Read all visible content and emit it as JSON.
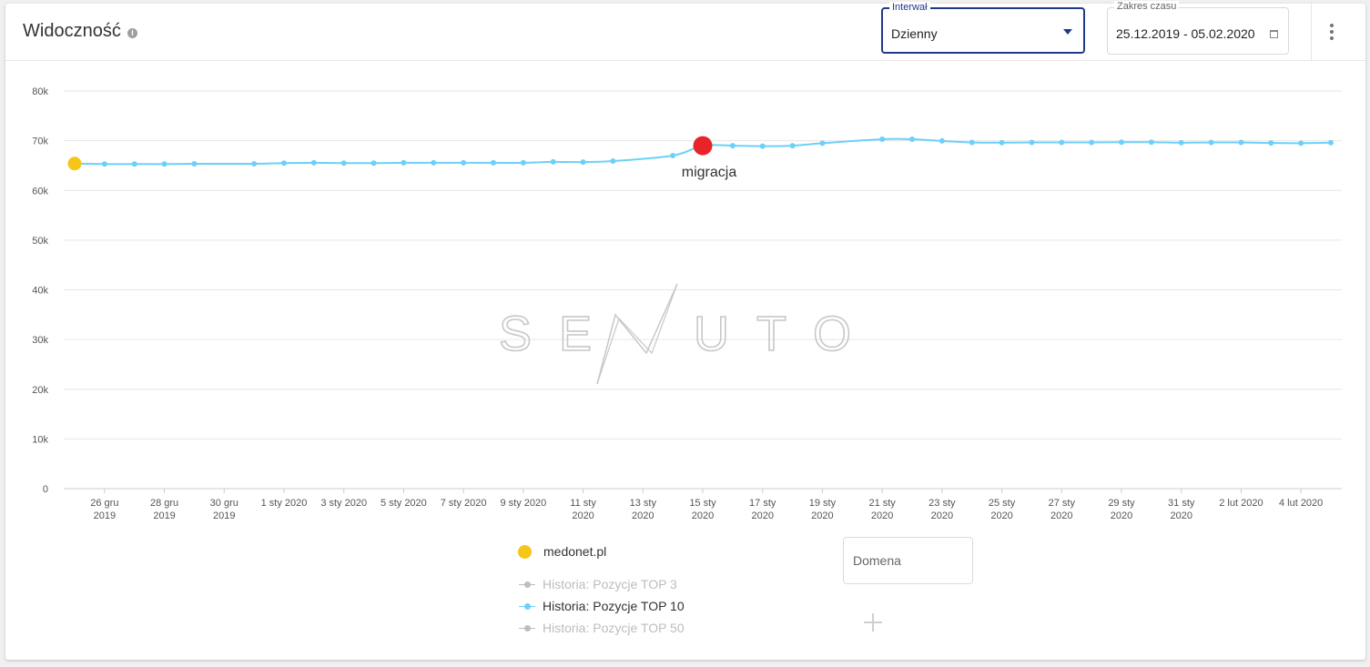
{
  "header": {
    "title": "Widoczność",
    "info_icon": "info-icon",
    "interval": {
      "label": "Interwał",
      "value": "Dzienny"
    },
    "date_range": {
      "label": "Zakres czasu",
      "value": "25.12.2019 - 05.02.2020"
    },
    "menu_icon": "more-vert-icon"
  },
  "legend": {
    "domain": "medonet.pl",
    "domain_color": "#f5c518",
    "series": [
      {
        "label": "Historia: Pozycje TOP 3",
        "active": false,
        "color": "#bdbdbd"
      },
      {
        "label": "Historia: Pozycje TOP 10",
        "active": true,
        "color": "#6dd0f7"
      },
      {
        "label": "Historia: Pozycje TOP 50",
        "active": false,
        "color": "#bdbdbd"
      }
    ],
    "domain_input_placeholder": "Domena",
    "add_icon": "plus-icon"
  },
  "chart_data": {
    "type": "line",
    "x": [
      "2019-12-25",
      "2019-12-26",
      "2019-12-27",
      "2019-12-28",
      "2019-12-29",
      "2019-12-31",
      "2020-01-01",
      "2020-01-02",
      "2020-01-03",
      "2020-01-04",
      "2020-01-05",
      "2020-01-06",
      "2020-01-07",
      "2020-01-08",
      "2020-01-09",
      "2020-01-10",
      "2020-01-11",
      "2020-01-12",
      "2020-01-14",
      "2020-01-15",
      "2020-01-16",
      "2020-01-17",
      "2020-01-18",
      "2020-01-19",
      "2020-01-21",
      "2020-01-22",
      "2020-01-23",
      "2020-01-24",
      "2020-01-25",
      "2020-01-26",
      "2020-01-27",
      "2020-01-28",
      "2020-01-29",
      "2020-01-30",
      "2020-01-31",
      "2020-02-01",
      "2020-02-02",
      "2020-02-03",
      "2020-02-04",
      "2020-02-05"
    ],
    "series": [
      {
        "name": "Historia: Pozycje TOP 10",
        "color": "#6dd0f7",
        "values": [
          65400,
          65300,
          65300,
          65300,
          65350,
          65350,
          65500,
          65550,
          65500,
          65500,
          65550,
          65550,
          65550,
          65550,
          65550,
          65750,
          65700,
          65900,
          67000,
          69000,
          69000,
          68900,
          69000,
          69500,
          70300,
          70300,
          69950,
          69650,
          69600,
          69650,
          69650,
          69650,
          69700,
          69700,
          69600,
          69650,
          69650,
          69550,
          69500,
          69600
        ]
      }
    ],
    "annotations": [
      {
        "x": "2019-12-25",
        "y": 65400,
        "color": "#f5c518"
      },
      {
        "x": "2020-01-15",
        "y": 69000,
        "color": "#e8242a",
        "label": "migracja"
      }
    ],
    "x_ticks": [
      {
        "x": "2019-12-26",
        "line1": "26 gru",
        "line2": "2019"
      },
      {
        "x": "2019-12-28",
        "line1": "28 gru",
        "line2": "2019"
      },
      {
        "x": "2019-12-30",
        "line1": "30 gru",
        "line2": "2019"
      },
      {
        "x": "2020-01-01",
        "line1": "1 sty 2020",
        "line2": ""
      },
      {
        "x": "2020-01-03",
        "line1": "3 sty 2020",
        "line2": ""
      },
      {
        "x": "2020-01-05",
        "line1": "5 sty 2020",
        "line2": ""
      },
      {
        "x": "2020-01-07",
        "line1": "7 sty 2020",
        "line2": ""
      },
      {
        "x": "2020-01-09",
        "line1": "9 sty 2020",
        "line2": ""
      },
      {
        "x": "2020-01-11",
        "line1": "11 sty",
        "line2": "2020"
      },
      {
        "x": "2020-01-13",
        "line1": "13 sty",
        "line2": "2020"
      },
      {
        "x": "2020-01-15",
        "line1": "15 sty",
        "line2": "2020"
      },
      {
        "x": "2020-01-17",
        "line1": "17 sty",
        "line2": "2020"
      },
      {
        "x": "2020-01-19",
        "line1": "19 sty",
        "line2": "2020"
      },
      {
        "x": "2020-01-21",
        "line1": "21 sty",
        "line2": "2020"
      },
      {
        "x": "2020-01-23",
        "line1": "23 sty",
        "line2": "2020"
      },
      {
        "x": "2020-01-25",
        "line1": "25 sty",
        "line2": "2020"
      },
      {
        "x": "2020-01-27",
        "line1": "27 sty",
        "line2": "2020"
      },
      {
        "x": "2020-01-29",
        "line1": "29 sty",
        "line2": "2020"
      },
      {
        "x": "2020-01-31",
        "line1": "31 sty",
        "line2": "2020"
      },
      {
        "x": "2020-02-02",
        "line1": "2 lut 2020",
        "line2": ""
      },
      {
        "x": "2020-02-04",
        "line1": "4 lut 2020",
        "line2": ""
      }
    ],
    "y_ticks": [
      "0",
      "10k",
      "20k",
      "30k",
      "40k",
      "50k",
      "60k",
      "70k",
      "80k"
    ],
    "ylim": [
      0,
      80000
    ],
    "xlim": [
      "2019-12-25",
      "2020-02-05"
    ],
    "grid": true,
    "watermark": "SENUTO"
  }
}
